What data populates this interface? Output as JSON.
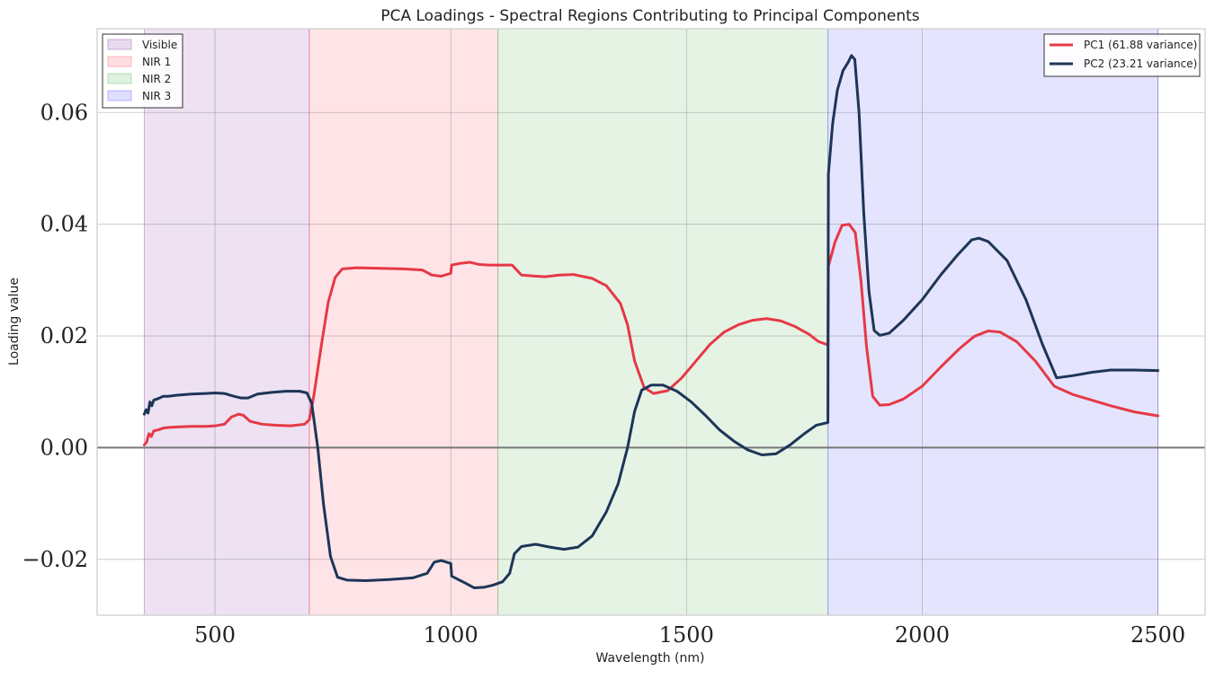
{
  "chart_data": {
    "type": "line",
    "title": "PCA Loadings - Spectral Regions Contributing to Principal Components",
    "xlabel": "Wavelength (nm)",
    "ylabel": "Loading value",
    "xlim": [
      250,
      2600
    ],
    "ylim": [
      -0.03,
      0.075
    ],
    "xticks": [
      500,
      1000,
      1500,
      2000,
      2500
    ],
    "xtick_labels": [
      "500",
      "1000",
      "1500",
      "2000",
      "2500"
    ],
    "yticks": [
      -0.02,
      0.0,
      0.02,
      0.04,
      0.06
    ],
    "ytick_labels": [
      "−0.02",
      "0.00",
      "0.02",
      "0.04",
      "0.06"
    ],
    "grid": true,
    "zero_line": 0.0,
    "regions": [
      {
        "name": "Visible",
        "start": 350,
        "end": 700,
        "color": "#9b59b6"
      },
      {
        "name": "NIR 1",
        "start": 700,
        "end": 1100,
        "color": "#ff6b7a"
      },
      {
        "name": "NIR 2",
        "start": 1100,
        "end": 1800,
        "color": "#6fbf6f"
      },
      {
        "name": "NIR 3",
        "start": 1800,
        "end": 2500,
        "color": "#6b6bff"
      }
    ],
    "region_legend_placement": "top-left",
    "series_legend_placement": "top-right",
    "series": [
      {
        "name": "PC1 (61.88 variance)",
        "color": "#e63946",
        "points": [
          [
            350,
            0.0005
          ],
          [
            355,
            0.001
          ],
          [
            360,
            0.0025
          ],
          [
            365,
            0.002
          ],
          [
            370,
            0.003
          ],
          [
            380,
            0.0032
          ],
          [
            390,
            0.0035
          ],
          [
            400,
            0.0036
          ],
          [
            420,
            0.0037
          ],
          [
            450,
            0.0038
          ],
          [
            480,
            0.0038
          ],
          [
            500,
            0.0039
          ],
          [
            520,
            0.0042
          ],
          [
            535,
            0.0055
          ],
          [
            550,
            0.006
          ],
          [
            560,
            0.0058
          ],
          [
            575,
            0.0047
          ],
          [
            600,
            0.0042
          ],
          [
            630,
            0.004
          ],
          [
            660,
            0.0039
          ],
          [
            690,
            0.0042
          ],
          [
            700,
            0.005
          ],
          [
            710,
            0.0095
          ],
          [
            725,
            0.018
          ],
          [
            740,
            0.026
          ],
          [
            755,
            0.0305
          ],
          [
            770,
            0.032
          ],
          [
            800,
            0.0322
          ],
          [
            850,
            0.0321
          ],
          [
            900,
            0.032
          ],
          [
            940,
            0.0318
          ],
          [
            960,
            0.0309
          ],
          [
            980,
            0.0307
          ],
          [
            995,
            0.0311
          ],
          [
            1000,
            0.0312
          ],
          [
            1002,
            0.0327
          ],
          [
            1020,
            0.033
          ],
          [
            1040,
            0.0332
          ],
          [
            1060,
            0.0328
          ],
          [
            1080,
            0.0327
          ],
          [
            1100,
            0.0327
          ],
          [
            1130,
            0.0327
          ],
          [
            1150,
            0.0309
          ],
          [
            1180,
            0.0307
          ],
          [
            1200,
            0.0306
          ],
          [
            1230,
            0.0309
          ],
          [
            1260,
            0.031
          ],
          [
            1300,
            0.0303
          ],
          [
            1330,
            0.029
          ],
          [
            1360,
            0.0258
          ],
          [
            1375,
            0.022
          ],
          [
            1390,
            0.0155
          ],
          [
            1410,
            0.0108
          ],
          [
            1430,
            0.0097
          ],
          [
            1460,
            0.0102
          ],
          [
            1490,
            0.0125
          ],
          [
            1520,
            0.0155
          ],
          [
            1550,
            0.0185
          ],
          [
            1580,
            0.0207
          ],
          [
            1610,
            0.022
          ],
          [
            1640,
            0.0228
          ],
          [
            1670,
            0.0231
          ],
          [
            1700,
            0.0227
          ],
          [
            1730,
            0.0217
          ],
          [
            1760,
            0.0203
          ],
          [
            1780,
            0.019
          ],
          [
            1800,
            0.0184
          ],
          [
            1801,
            0.0325
          ],
          [
            1815,
            0.0368
          ],
          [
            1830,
            0.0398
          ],
          [
            1845,
            0.04
          ],
          [
            1858,
            0.0385
          ],
          [
            1870,
            0.03
          ],
          [
            1882,
            0.018
          ],
          [
            1895,
            0.0092
          ],
          [
            1910,
            0.0076
          ],
          [
            1930,
            0.0077
          ],
          [
            1960,
            0.0087
          ],
          [
            2000,
            0.011
          ],
          [
            2040,
            0.0145
          ],
          [
            2080,
            0.0178
          ],
          [
            2110,
            0.0199
          ],
          [
            2140,
            0.0209
          ],
          [
            2165,
            0.0207
          ],
          [
            2200,
            0.019
          ],
          [
            2240,
            0.0155
          ],
          [
            2280,
            0.011
          ],
          [
            2320,
            0.0095
          ],
          [
            2360,
            0.0085
          ],
          [
            2400,
            0.0075
          ],
          [
            2450,
            0.0064
          ],
          [
            2500,
            0.0057
          ]
        ]
      },
      {
        "name": "PC2 (23.21 variance)",
        "color": "#1d3557",
        "points": [
          [
            350,
            0.006
          ],
          [
            354,
            0.0068
          ],
          [
            358,
            0.0062
          ],
          [
            362,
            0.0082
          ],
          [
            366,
            0.0075
          ],
          [
            370,
            0.0085
          ],
          [
            380,
            0.0088
          ],
          [
            390,
            0.0092
          ],
          [
            400,
            0.0092
          ],
          [
            420,
            0.0094
          ],
          [
            450,
            0.0096
          ],
          [
            480,
            0.0097
          ],
          [
            500,
            0.0098
          ],
          [
            520,
            0.0097
          ],
          [
            540,
            0.0092
          ],
          [
            555,
            0.0089
          ],
          [
            570,
            0.0089
          ],
          [
            590,
            0.0096
          ],
          [
            620,
            0.0099
          ],
          [
            650,
            0.0101
          ],
          [
            680,
            0.0101
          ],
          [
            695,
            0.0098
          ],
          [
            705,
            0.008
          ],
          [
            718,
            0.0
          ],
          [
            730,
            -0.01
          ],
          [
            745,
            -0.0195
          ],
          [
            760,
            -0.0232
          ],
          [
            780,
            -0.0237
          ],
          [
            820,
            -0.0238
          ],
          [
            870,
            -0.0236
          ],
          [
            920,
            -0.0233
          ],
          [
            950,
            -0.0225
          ],
          [
            965,
            -0.0205
          ],
          [
            980,
            -0.0202
          ],
          [
            995,
            -0.0206
          ],
          [
            1000,
            -0.0207
          ],
          [
            1002,
            -0.023
          ],
          [
            1030,
            -0.0242
          ],
          [
            1050,
            -0.0251
          ],
          [
            1070,
            -0.025
          ],
          [
            1090,
            -0.0246
          ],
          [
            1110,
            -0.024
          ],
          [
            1125,
            -0.0225
          ],
          [
            1135,
            -0.019
          ],
          [
            1150,
            -0.0177
          ],
          [
            1180,
            -0.0173
          ],
          [
            1210,
            -0.0178
          ],
          [
            1240,
            -0.0182
          ],
          [
            1270,
            -0.0178
          ],
          [
            1300,
            -0.0158
          ],
          [
            1330,
            -0.0115
          ],
          [
            1355,
            -0.0065
          ],
          [
            1375,
            0.0
          ],
          [
            1390,
            0.0065
          ],
          [
            1405,
            0.0103
          ],
          [
            1425,
            0.0112
          ],
          [
            1450,
            0.0112
          ],
          [
            1480,
            0.0101
          ],
          [
            1510,
            0.0082
          ],
          [
            1540,
            0.0058
          ],
          [
            1570,
            0.0032
          ],
          [
            1600,
            0.0012
          ],
          [
            1630,
            -0.0004
          ],
          [
            1660,
            -0.0013
          ],
          [
            1690,
            -0.0011
          ],
          [
            1720,
            0.0005
          ],
          [
            1750,
            0.0025
          ],
          [
            1775,
            0.004
          ],
          [
            1800,
            0.0045
          ],
          [
            1801,
            0.049
          ],
          [
            1810,
            0.058
          ],
          [
            1820,
            0.064
          ],
          [
            1832,
            0.0675
          ],
          [
            1843,
            0.069
          ],
          [
            1850,
            0.0702
          ],
          [
            1857,
            0.0695
          ],
          [
            1866,
            0.06
          ],
          [
            1876,
            0.042
          ],
          [
            1887,
            0.028
          ],
          [
            1898,
            0.021
          ],
          [
            1910,
            0.0201
          ],
          [
            1930,
            0.0205
          ],
          [
            1960,
            0.0228
          ],
          [
            2000,
            0.0265
          ],
          [
            2040,
            0.031
          ],
          [
            2075,
            0.0345
          ],
          [
            2105,
            0.0372
          ],
          [
            2120,
            0.0375
          ],
          [
            2140,
            0.0369
          ],
          [
            2180,
            0.0335
          ],
          [
            2220,
            0.0265
          ],
          [
            2255,
            0.0185
          ],
          [
            2285,
            0.0125
          ],
          [
            2320,
            0.0129
          ],
          [
            2360,
            0.0135
          ],
          [
            2400,
            0.0139
          ],
          [
            2450,
            0.0139
          ],
          [
            2500,
            0.0138
          ]
        ]
      }
    ]
  }
}
